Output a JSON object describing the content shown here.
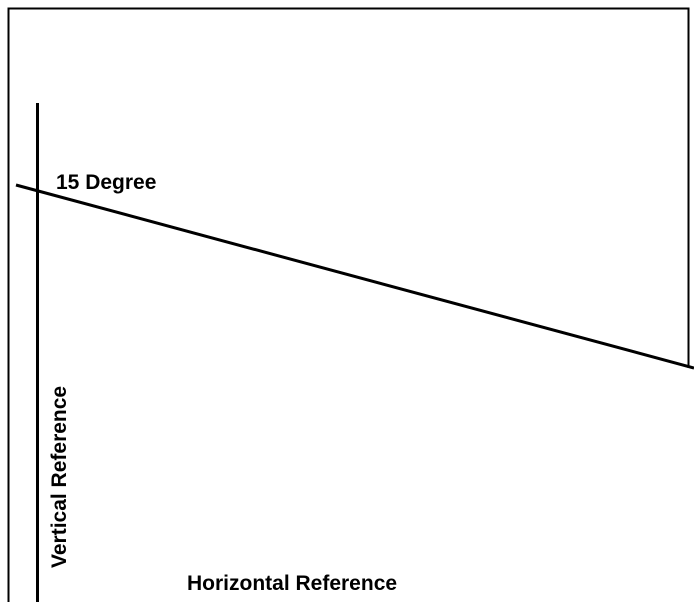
{
  "diagram": {
    "angle_label": "15 Degree",
    "vertical_label": "Vertical Reference",
    "horizontal_label": "Horizontal Reference",
    "angle_degrees": 15,
    "colors": {
      "line": "#000000",
      "background": "#ffffff"
    }
  }
}
